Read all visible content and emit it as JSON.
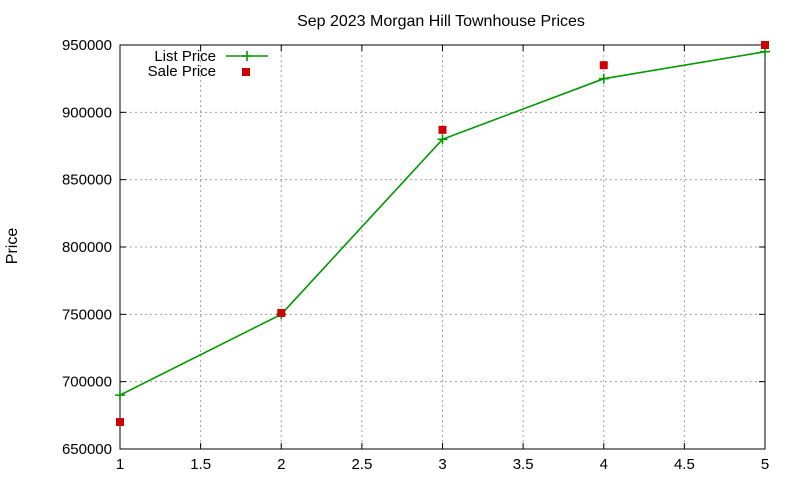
{
  "chart_data": {
    "type": "line",
    "title": "Sep 2023 Morgan Hill Townhouse Prices",
    "xlabel": "",
    "ylabel": "Price",
    "xlim": [
      1,
      5
    ],
    "ylim": [
      650000,
      950000
    ],
    "x_ticks": [
      "1",
      "1.5",
      "2",
      "2.5",
      "3",
      "3.5",
      "4",
      "4.5",
      "5"
    ],
    "y_ticks": [
      "650000",
      "700000",
      "750000",
      "800000",
      "850000",
      "900000",
      "950000"
    ],
    "x_tick_values": [
      1,
      1.5,
      2,
      2.5,
      3,
      3.5,
      4,
      4.5,
      5
    ],
    "y_tick_values": [
      650000,
      700000,
      750000,
      800000,
      850000,
      900000,
      950000
    ],
    "grid": true,
    "legend_position": "top-left",
    "series": [
      {
        "name": "List Price",
        "style": "line-with-plus-markers",
        "color": "#009900",
        "x": [
          1,
          2,
          3,
          4,
          5
        ],
        "y": [
          690000,
          750000,
          880000,
          925000,
          945000
        ]
      },
      {
        "name": "Sale Price",
        "style": "square-markers",
        "color": "#cc0000",
        "x": [
          1,
          2,
          3,
          4,
          5
        ],
        "y": [
          670000,
          751000,
          887000,
          935000,
          950000
        ]
      }
    ]
  }
}
